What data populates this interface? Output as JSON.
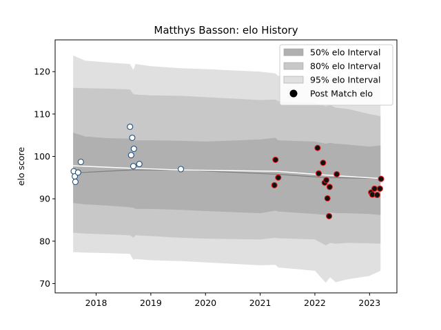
{
  "chart_data": {
    "type": "scatter",
    "title": "Matthys Basson: elo History",
    "xlabel": "",
    "ylabel": "elo score",
    "xlim": [
      2017.25,
      2023.5
    ],
    "ylim": [
      67.8,
      127.5
    ],
    "x_ticks": [
      2018,
      2019,
      2020,
      2021,
      2022,
      2023
    ],
    "x_tick_labels": [
      "2018",
      "2019",
      "2020",
      "2021",
      "2022",
      "2023"
    ],
    "y_ticks": [
      70,
      80,
      90,
      100,
      110,
      120
    ],
    "y_tick_labels": [
      "70",
      "80",
      "90",
      "100",
      "110",
      "120"
    ],
    "grid": false,
    "legend_position": "top-right",
    "legend": [
      {
        "label": "50% elo Interval",
        "kind": "patch",
        "color": "#b0b0b0"
      },
      {
        "label": "80% elo Interval",
        "kind": "patch",
        "color": "#c8c8c8"
      },
      {
        "label": "95% elo Interval",
        "kind": "patch",
        "color": "#e0e0e0"
      },
      {
        "label": "Post Match elo",
        "kind": "marker",
        "color": "#000000"
      }
    ],
    "band_x": [
      2017.58,
      2017.8,
      2018.2,
      2018.62,
      2018.68,
      2018.72,
      2019.0,
      2019.55,
      2020.0,
      2021.0,
      2021.28,
      2021.33,
      2022.0,
      2022.2,
      2022.28,
      2022.38,
      2022.6,
      2023.0,
      2023.2
    ],
    "band95_upper": [
      123.8,
      122.6,
      122.2,
      121.8,
      120.4,
      121.8,
      121.3,
      120.8,
      120.6,
      120.0,
      119.6,
      119.0,
      118.8,
      118.4,
      119.5,
      118.6,
      118.2,
      117.2,
      116.8
    ],
    "band95_lower": [
      77.4,
      77.3,
      77.2,
      77.0,
      75.6,
      75.8,
      75.5,
      75.3,
      75.0,
      74.3,
      74.4,
      73.8,
      73.0,
      70.2,
      71.5,
      70.3,
      71.0,
      71.8,
      73.0
    ],
    "band80_upper": [
      116.2,
      116.1,
      116.0,
      115.8,
      114.7,
      114.6,
      114.4,
      114.3,
      114.0,
      113.3,
      113.4,
      113.0,
      112.6,
      111.8,
      112.1,
      111.5,
      111.2,
      110.0,
      109.5
    ],
    "band80_lower": [
      82.0,
      81.8,
      81.6,
      81.4,
      80.8,
      81.4,
      81.2,
      80.8,
      80.6,
      80.4,
      80.8,
      80.7,
      80.4,
      79.0,
      79.6,
      79.4,
      79.6,
      79.5,
      79.4
    ],
    "band50_upper": [
      105.6,
      104.7,
      104.3,
      104.2,
      103.6,
      103.8,
      103.8,
      103.7,
      103.5,
      104.0,
      104.4,
      103.8,
      103.5,
      103.0,
      103.2,
      103.0,
      102.8,
      102.3,
      102.6
    ],
    "band50_lower": [
      89.0,
      88.7,
      88.4,
      88.0,
      87.9,
      87.6,
      87.6,
      87.4,
      87.1,
      86.6,
      87.2,
      87.0,
      86.4,
      86.2,
      86.8,
      86.6,
      86.6,
      86.4,
      86.2
    ],
    "mean_line": {
      "x": [
        2017.58,
        2018.65,
        2019.55,
        2021.3,
        2022.2,
        2023.2
      ],
      "y": [
        96.1,
        96.8,
        96.8,
        95.8,
        95.0,
        94.8
      ],
      "color": "#808080"
    },
    "trend_line": {
      "x": [
        2017.58,
        2018.65,
        2019.55,
        2021.3,
        2022.2,
        2023.2
      ],
      "y": [
        97.8,
        97.2,
        96.8,
        96.5,
        95.6,
        94.8
      ],
      "color": "#ffffff"
    },
    "series": [
      {
        "marker_face": "#ffffff",
        "marker_edge": "#1f4e79",
        "points": [
          [
            2017.59,
            96.5
          ],
          [
            2017.61,
            95.3
          ],
          [
            2017.62,
            94.0
          ],
          [
            2017.67,
            96.2
          ],
          [
            2017.72,
            98.7
          ],
          [
            2018.62,
            107.0
          ],
          [
            2018.66,
            104.4
          ],
          [
            2018.64,
            100.3
          ],
          [
            2018.69,
            101.8
          ],
          [
            2018.68,
            97.7
          ],
          [
            2018.79,
            98.2
          ],
          [
            2019.55,
            97.0
          ]
        ]
      },
      {
        "marker_face": "#111111",
        "marker_edge": "#e31a1c",
        "points": [
          [
            2021.28,
            99.2
          ],
          [
            2021.33,
            95.0
          ],
          [
            2021.26,
            93.2
          ],
          [
            2022.05,
            102.0
          ],
          [
            2022.07,
            96.0
          ],
          [
            2022.15,
            98.5
          ],
          [
            2022.18,
            93.8
          ],
          [
            2022.21,
            94.4
          ],
          [
            2022.23,
            90.1
          ],
          [
            2022.27,
            92.8
          ],
          [
            2022.26,
            85.9
          ],
          [
            2022.4,
            95.8
          ],
          [
            2023.03,
            91.5
          ],
          [
            2023.05,
            91.0
          ],
          [
            2023.09,
            92.4
          ],
          [
            2023.14,
            90.9
          ],
          [
            2023.19,
            92.4
          ],
          [
            2023.21,
            94.7
          ]
        ]
      }
    ]
  }
}
